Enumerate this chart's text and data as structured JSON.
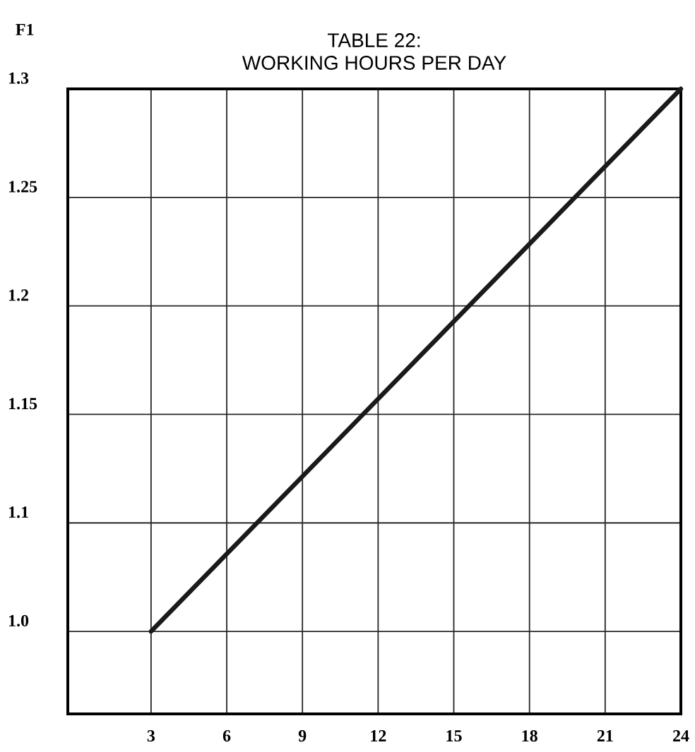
{
  "chart_data": {
    "type": "line",
    "title": "TABLE 22:",
    "subtitle": "WORKING HOURS PER DAY",
    "ylabel": "F1",
    "x": [
      3,
      24
    ],
    "series": [
      {
        "color": "#1a1a1a",
        "values": [
          1.05,
          1.3
        ]
      }
    ],
    "xlim": [
      -0.3,
      24
    ],
    "xticks": [
      3,
      6,
      9,
      12,
      15,
      18,
      21,
      24
    ],
    "ylim": [
      1.012,
      1.3
    ],
    "yticks": [
      {
        "value": 1.05,
        "label": "1.0"
      },
      1.1,
      1.15,
      1.2,
      1.25,
      1.3
    ],
    "grid": true,
    "marker": "none",
    "line_style": "solid"
  }
}
